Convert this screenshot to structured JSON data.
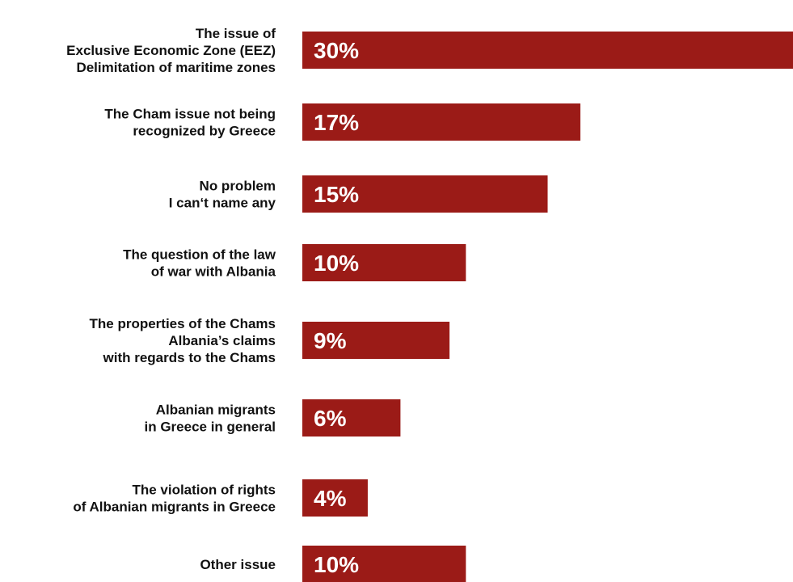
{
  "chart_data": {
    "type": "bar",
    "orientation": "horizontal",
    "bar_color": "#9b1b17",
    "value_label_color": "#ffffff",
    "xlim": [
      0,
      30
    ],
    "grid": false,
    "categories": [
      {
        "lines": [
          [
            {
              "t": "The issue of",
              "b": false
            }
          ],
          [
            {
              "t": "Exclusive Economic Zone (EEZ)",
              "b": true
            }
          ],
          [
            {
              "t": "Delimitation of ",
              "b": false
            },
            {
              "t": "maritime zones",
              "b": true
            }
          ]
        ]
      },
      {
        "lines": [
          [
            {
              "t": "The ",
              "b": false
            },
            {
              "t": "Cham issue",
              "b": true
            },
            {
              "t": " not being",
              "b": false
            }
          ],
          [
            {
              "t": "recognized by Greece",
              "b": false
            }
          ]
        ]
      },
      {
        "lines": [
          [
            {
              "t": "No problem",
              "b": true
            }
          ],
          [
            {
              "t": "I can‘t name any",
              "b": false
            }
          ]
        ]
      },
      {
        "lines": [
          [
            {
              "t": "The question of the law",
              "b": true
            }
          ],
          [
            {
              "t": "of war",
              "b": true
            },
            {
              "t": " with Albania",
              "b": false
            }
          ]
        ]
      },
      {
        "lines": [
          [
            {
              "t": "The ",
              "b": false
            },
            {
              "t": "properties of the Chams",
              "b": true
            }
          ],
          [
            {
              "t": "Albania’s claims",
              "b": false
            }
          ],
          [
            {
              "t": "with regards to the Chams",
              "b": false
            }
          ]
        ]
      },
      {
        "lines": [
          [
            {
              "t": "Albanian migrants",
              "b": true
            }
          ],
          [
            {
              "t": "in Greece in general",
              "b": false
            }
          ]
        ]
      },
      {
        "lines": [
          [
            {
              "t": "The ",
              "b": false
            },
            {
              "t": "violation of rights",
              "b": true
            }
          ],
          [
            {
              "t": "of Albanian migrants in Greece",
              "b": false
            }
          ]
        ]
      },
      {
        "lines": [
          [
            {
              "t": "Other issue",
              "b": false
            }
          ]
        ]
      }
    ],
    "values": [
      30,
      17,
      15,
      10,
      9,
      6,
      4,
      10
    ],
    "value_labels": [
      "30%",
      "17%",
      "15%",
      "10%",
      "9%",
      "6%",
      "4%",
      "10%"
    ]
  }
}
